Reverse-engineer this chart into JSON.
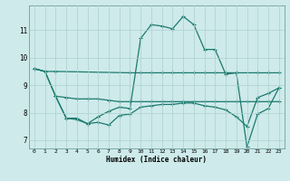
{
  "xlabel": "Humidex (Indice chaleur)",
  "bg_color": "#ceeaea",
  "line_color": "#1a7a6e",
  "grid_color": "#aed0d0",
  "xlim": [
    -0.5,
    23.5
  ],
  "ylim": [
    6.7,
    11.9
  ],
  "xticks": [
    0,
    1,
    2,
    3,
    4,
    5,
    6,
    7,
    8,
    9,
    10,
    11,
    12,
    13,
    14,
    15,
    16,
    17,
    18,
    19,
    20,
    21,
    22,
    23
  ],
  "yticks": [
    7,
    8,
    9,
    10,
    11
  ],
  "line1_x": [
    0,
    1,
    2,
    9,
    10,
    11,
    12,
    13,
    14,
    15,
    16,
    17,
    18,
    19,
    21,
    22,
    23
  ],
  "line1_y": [
    9.6,
    9.5,
    9.5,
    9.45,
    9.45,
    9.45,
    9.45,
    9.45,
    9.45,
    9.45,
    9.45,
    9.45,
    9.45,
    9.45,
    9.45,
    9.45,
    9.45
  ],
  "line2_x": [
    0,
    1,
    2,
    3,
    4,
    5,
    6,
    7,
    8,
    9,
    10,
    11,
    12,
    13,
    14,
    15,
    16,
    17,
    18,
    19,
    20,
    21,
    22,
    23
  ],
  "line2_y": [
    9.6,
    9.5,
    8.6,
    7.8,
    7.8,
    7.6,
    7.85,
    8.05,
    8.2,
    8.15,
    10.7,
    11.2,
    11.15,
    11.05,
    11.5,
    11.2,
    10.3,
    10.3,
    9.4,
    9.45,
    6.75,
    7.95,
    8.15,
    8.9
  ],
  "line3_x": [
    2,
    3,
    4,
    5,
    6,
    7,
    8,
    9,
    10,
    11,
    12,
    13,
    14,
    15,
    16,
    17,
    18,
    19,
    20,
    21,
    22,
    23
  ],
  "line3_y": [
    8.6,
    8.55,
    8.5,
    8.5,
    8.5,
    8.45,
    8.4,
    8.4,
    8.4,
    8.4,
    8.4,
    8.4,
    8.4,
    8.4,
    8.4,
    8.4,
    8.4,
    8.4,
    8.4,
    8.4,
    8.4,
    8.4
  ],
  "line4_x": [
    0,
    1,
    2,
    3,
    4,
    5,
    6,
    7,
    8,
    9,
    10,
    11,
    12,
    13,
    14,
    15,
    16,
    17,
    18,
    19,
    20,
    21,
    22,
    23
  ],
  "line4_y": [
    9.6,
    9.5,
    8.6,
    7.8,
    7.75,
    7.6,
    7.65,
    7.55,
    7.9,
    7.95,
    8.2,
    8.25,
    8.3,
    8.3,
    8.35,
    8.35,
    8.25,
    8.2,
    8.1,
    7.85,
    7.5,
    8.55,
    8.7,
    8.9
  ]
}
